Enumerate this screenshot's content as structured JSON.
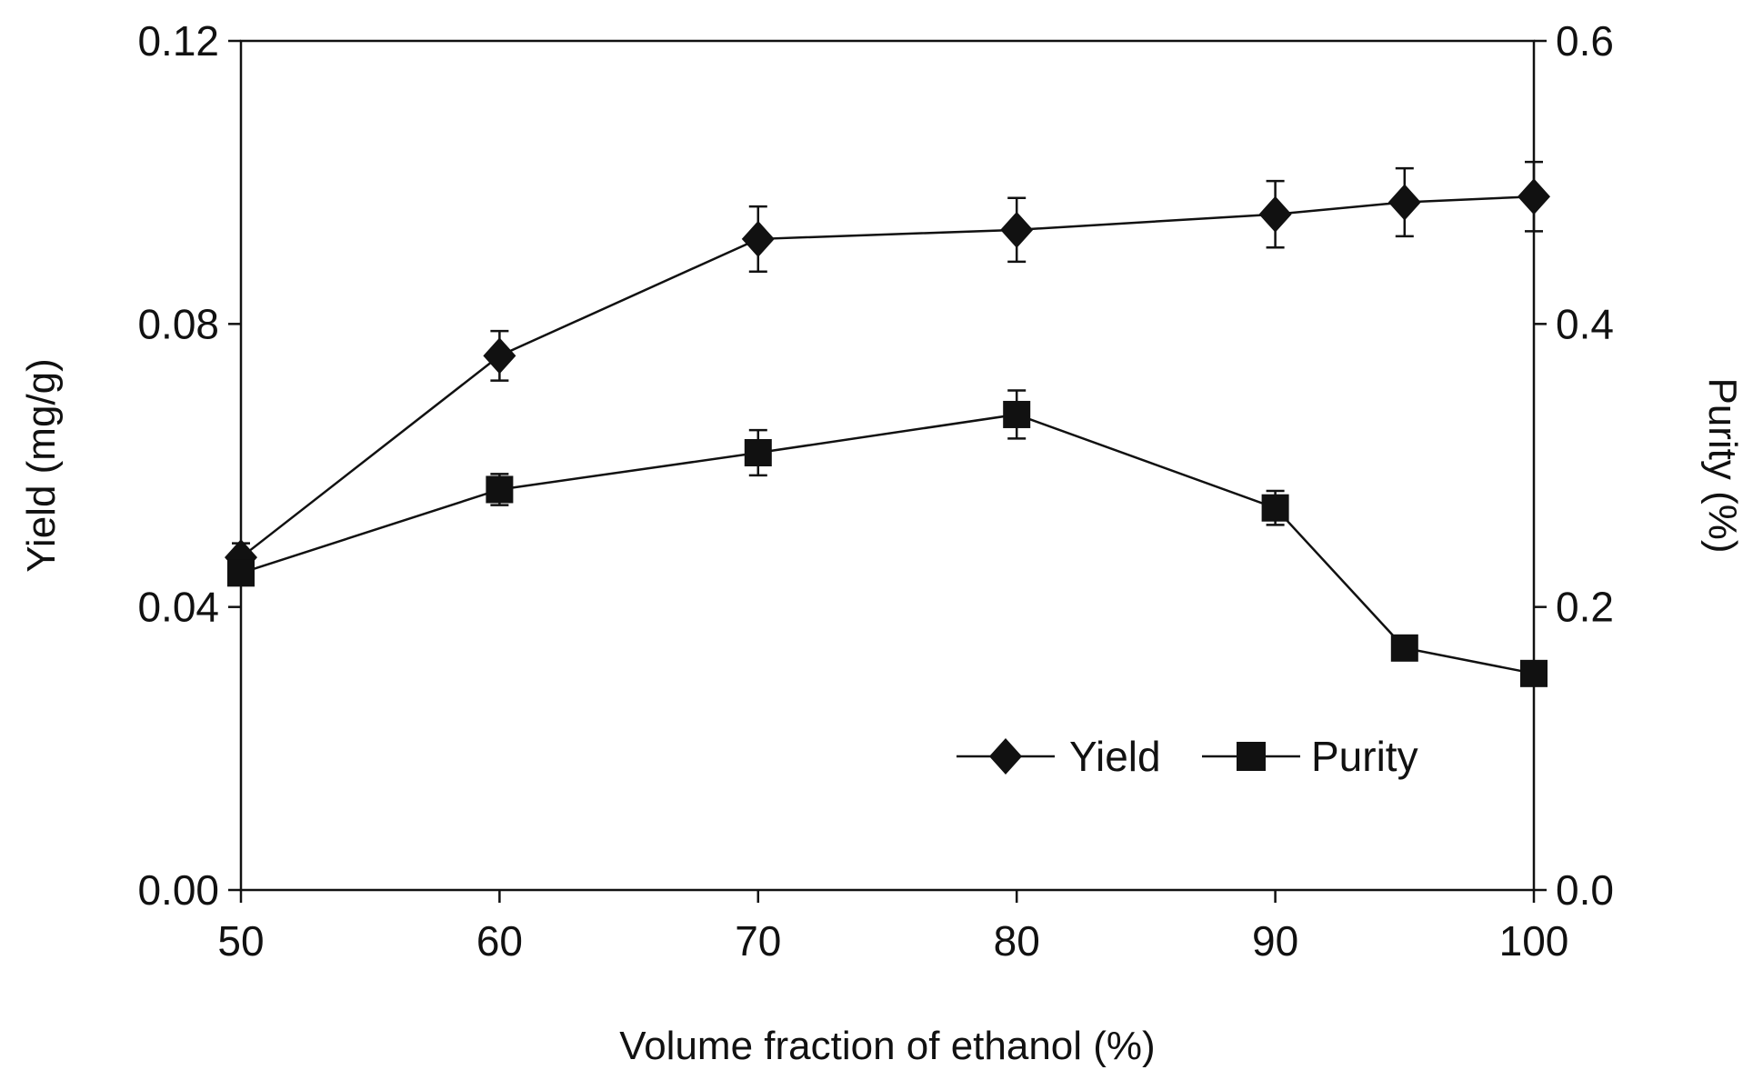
{
  "chart_data": {
    "type": "line",
    "title": "",
    "xlabel": "Volume fraction of ethanol (%)",
    "ylabel": "Yield (mg/g)",
    "y2label": "Purity (%)",
    "x": [
      50,
      60,
      70,
      80,
      90,
      95,
      100
    ],
    "xlim": [
      50,
      100
    ],
    "ylim": [
      0,
      0.12
    ],
    "y2lim": [
      0,
      0.6
    ],
    "xticks": [
      "50",
      "60",
      "70",
      "80",
      "90",
      "100"
    ],
    "xtick_values": [
      50,
      60,
      70,
      80,
      90,
      100
    ],
    "yticks": [
      "0.00",
      "0.04",
      "0.08",
      "0.12"
    ],
    "ytick_values": [
      0,
      0.04,
      0.08,
      0.12
    ],
    "y2ticks": [
      "0.0",
      "0.2",
      "0.4",
      "0.6"
    ],
    "y2tick_values": [
      0,
      0.2,
      0.4,
      0.6
    ],
    "grid": false,
    "legend_position": "lower-right",
    "series": [
      {
        "name": "Yield",
        "axis": "left",
        "marker": "diamond",
        "values": [
          0.047,
          0.0755,
          0.092,
          0.0933,
          0.0955,
          0.0972,
          0.098
        ],
        "errors": [
          0.002,
          0.0035,
          0.0046,
          0.0045,
          0.0047,
          0.0048,
          0.0049
        ]
      },
      {
        "name": "Purity",
        "axis": "right",
        "marker": "square",
        "values": [
          0.224,
          0.283,
          0.309,
          0.336,
          0.27,
          0.171,
          0.153
        ],
        "errors": [
          0.006,
          0.011,
          0.016,
          0.017,
          0.012,
          0.005,
          0.005
        ]
      }
    ]
  }
}
